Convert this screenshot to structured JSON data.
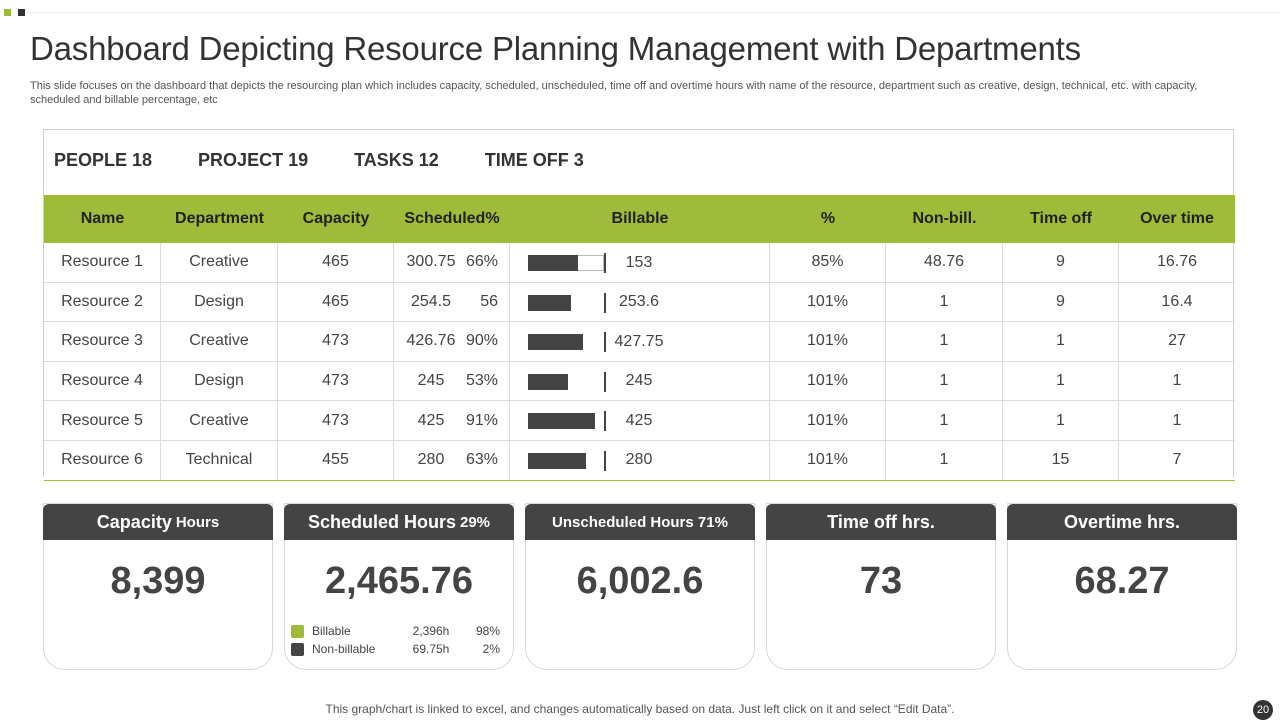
{
  "title": "Dashboard Depicting Resource Planning Management with Departments",
  "subtitle": "This slide focuses on the dashboard that depicts the resourcing plan which includes capacity, scheduled, unscheduled, time off and overtime hours with name of the resource, department such as creative, design, technical, etc. with capacity, scheduled and billable percentage, etc",
  "stats": [
    "PEOPLE 18",
    "PROJECT 19",
    "TASKS 12",
    "TIME OFF 3"
  ],
  "table": {
    "headers": [
      "Name",
      "Department",
      "Capacity",
      "Scheduled%",
      "Billable",
      "%",
      "Non-bill.",
      "Time off",
      "Over time"
    ],
    "rows": [
      {
        "name": "Resource  1",
        "dept": "Creative",
        "capacity": "465",
        "sched": "300.75",
        "sched_pct": "66%",
        "billable": "153",
        "billable_bar": 0.66,
        "pct": "85%",
        "nonbill": "48.76",
        "timeoff": "9",
        "overtime": "16.76"
      },
      {
        "name": "Resource  2",
        "dept": "Design",
        "capacity": "465",
        "sched": "254.5",
        "sched_pct": "56",
        "billable": "253.6",
        "billable_bar": 0.56,
        "pct": "101%",
        "nonbill": "1",
        "timeoff": "9",
        "overtime": "16.4"
      },
      {
        "name": "Resource  3",
        "dept": "Creative",
        "capacity": "473",
        "sched": "426.76",
        "sched_pct": "90%",
        "billable": "427.75",
        "billable_bar": 0.72,
        "pct": "101%",
        "nonbill": "1",
        "timeoff": "1",
        "overtime": "27"
      },
      {
        "name": "Resource  4",
        "dept": "Design",
        "capacity": "473",
        "sched": "245",
        "sched_pct": "53%",
        "billable": "245",
        "billable_bar": 0.53,
        "pct": "101%",
        "nonbill": "1",
        "timeoff": "1",
        "overtime": "1"
      },
      {
        "name": "Resource  5",
        "dept": "Creative",
        "capacity": "473",
        "sched": "425",
        "sched_pct": "91%",
        "billable": "425",
        "billable_bar": 0.88,
        "pct": "101%",
        "nonbill": "1",
        "timeoff": "1",
        "overtime": "1"
      },
      {
        "name": "Resource  6",
        "dept": "Technical",
        "capacity": "455",
        "sched": "280",
        "sched_pct": "63%",
        "billable": "280",
        "billable_bar": 0.76,
        "pct": "101%",
        "nonbill": "1",
        "timeoff": "15",
        "overtime": "7"
      }
    ]
  },
  "cards": [
    {
      "title": "Capacity",
      "title_small": "Hours",
      "value": "8,399"
    },
    {
      "title": "Scheduled Hours",
      "title_small": "29%",
      "value": "2,465.76"
    },
    {
      "title": "Unscheduled Hours 71%",
      "title_small": "",
      "value": "6,002.6"
    },
    {
      "title": "Time off hrs.",
      "title_small": "",
      "value": "73"
    },
    {
      "title": "Overtime hrs.",
      "title_small": "",
      "value": "68.27"
    }
  ],
  "legend": [
    {
      "name": "Billable",
      "hours": "2,396h",
      "pct": "98%",
      "color": "#9fbb3a"
    },
    {
      "name": "Non-billable",
      "hours": "69.75h",
      "pct": "2%",
      "color": "#444444"
    }
  ],
  "footer": "This graph/chart is linked to excel,  and changes automatically based on data. Just left click on it and select “Edit Data”.",
  "page_number": "20",
  "colors": {
    "accent": "#9fbb3a",
    "dark": "#444444"
  }
}
